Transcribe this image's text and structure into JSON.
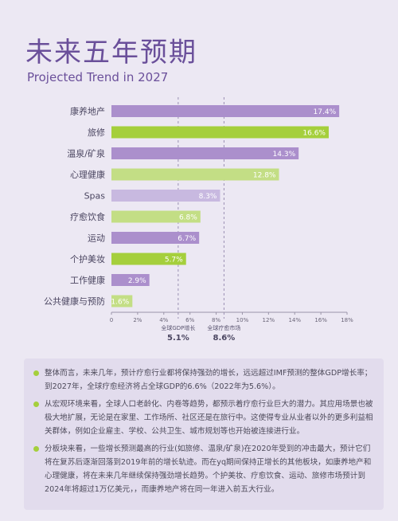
{
  "title": "未来五年预期",
  "subtitle": "Projected Trend in 2027",
  "chart_data": {
    "type": "bar",
    "orientation": "horizontal",
    "categories": [
      "康养地产",
      "旅修",
      "温泉/矿泉",
      "心理健康",
      "Spas",
      "疗愈饮食",
      "运动",
      "个护美妆",
      "工作健康",
      "公共健康与预防"
    ],
    "values": [
      17.4,
      16.6,
      14.3,
      12.8,
      8.3,
      6.8,
      6.7,
      5.7,
      2.9,
      1.6
    ],
    "value_labels": [
      "17.4%",
      "16.6%",
      "14.3%",
      "12.8%",
      "8.3%",
      "6.8%",
      "6.7%",
      "5.7%",
      "2.9%",
      "1.6%"
    ],
    "bar_colors": [
      "#ab8fcc",
      "#a5cf3c",
      "#ab8fcc",
      "#c3de85",
      "#c8b9e0",
      "#c3de85",
      "#ab8fcc",
      "#a5cf3c",
      "#ab8fcc",
      "#c3de85"
    ],
    "xlim": [
      0,
      18
    ],
    "x_ticks": [
      "0",
      "2%",
      "4%",
      "6%",
      "8%",
      "10%",
      "12%",
      "14%",
      "16%",
      "18%"
    ],
    "grid": false,
    "reference_lines": [
      {
        "value": 5.1,
        "label": "全球GDP增长",
        "value_label": "5.1%"
      },
      {
        "value": 8.6,
        "label": "全球疗愈市场",
        "value_label": "8.6%"
      }
    ]
  },
  "notes": [
    "整体而言，未来几年，预计疗愈行业都将保持强劲的增长，远远超过IMF预测的整体GDP增长率；到2027年，全球疗愈经济将占全球GDP的6.6%（2022年为5.6%）。",
    "从宏观环境来看，全球人口老龄化、内卷等趋势，都预示着疗愈行业巨大的潜力。其应用场景也被极大地扩展，无论是在家里、工作场所、社区还是在旅行中。这使得专业从业者以外的更多利益相关群体，例如企业雇主、学校、公共卫生、城市规划等也开始被连接进行业。",
    "分板块来看，一些增长预测最高的行业(如旅修、温泉/矿泉)在2020年受到的冲击最大，预计它们将在复苏后逐渐回落到2019年前的增长轨迹。而在yq期间保持正增长的其他板块，如康养地产和心理健康，将在未来几年继续保持强劲增长趋势。个护美妆、疗愈饮食、运动、旅修市场预计到2024年将超过1万亿美元，，而康养地产将在同一年进入前五大行业。"
  ],
  "colors": {
    "accent": "#6a4f9a",
    "purple_bar": "#ab8fcc",
    "green_bar": "#a5cf3c",
    "bullet": "#a5cf3c"
  }
}
